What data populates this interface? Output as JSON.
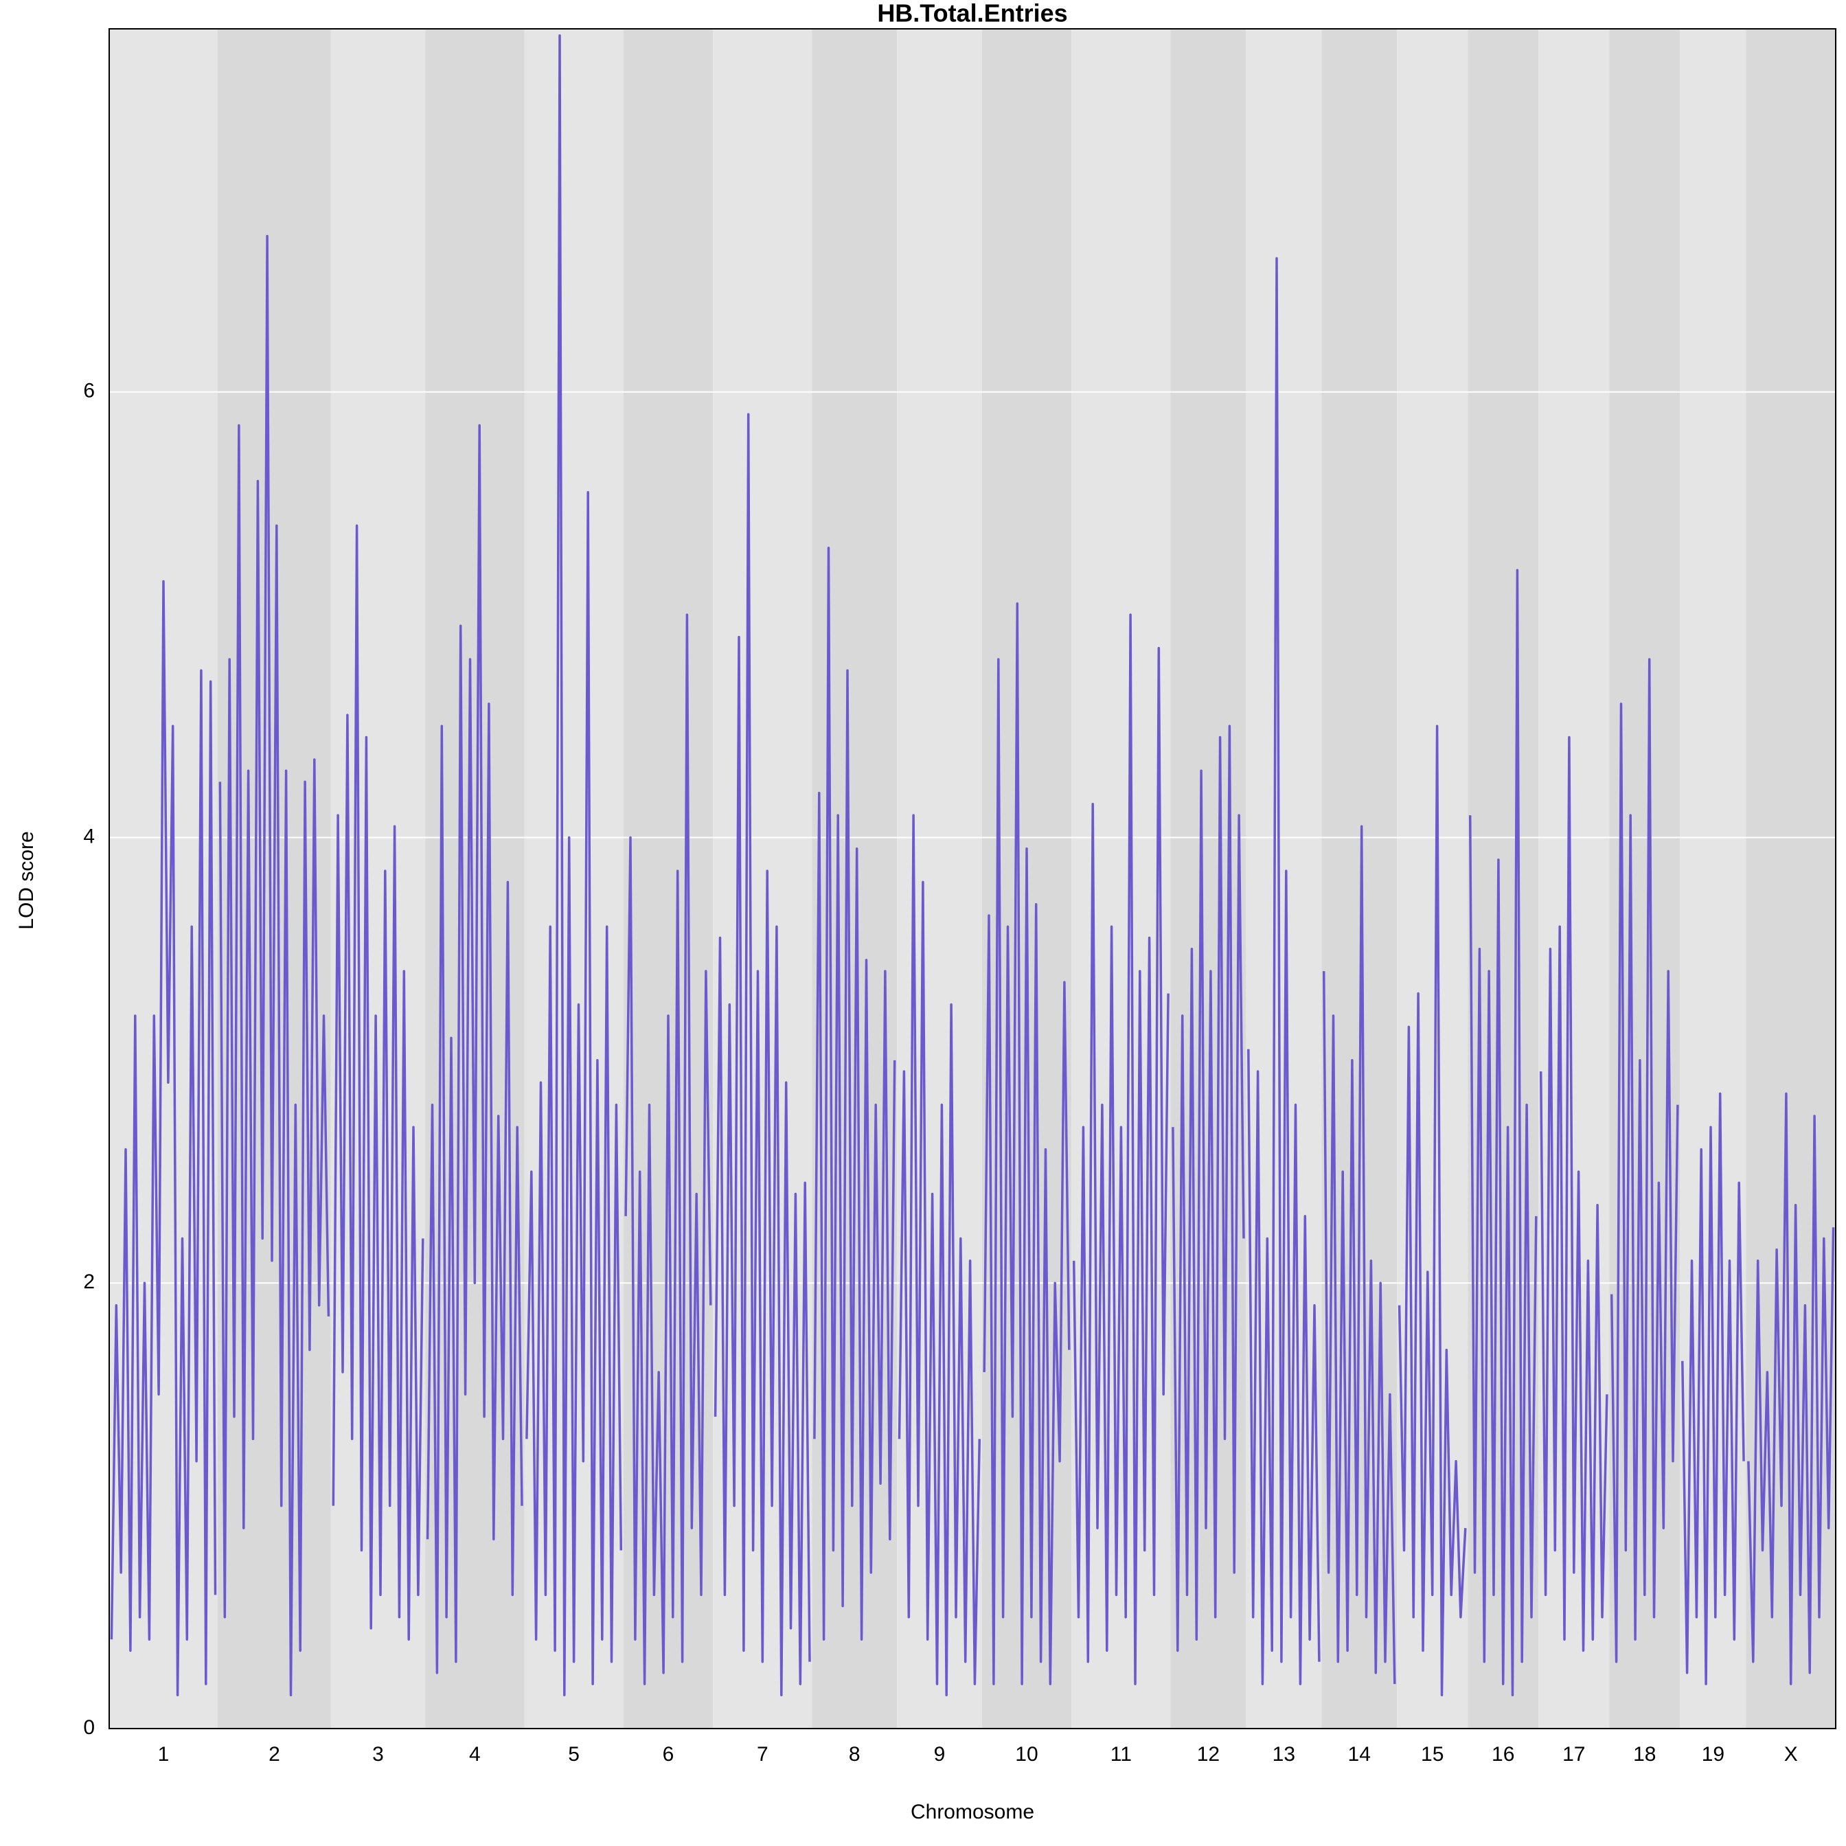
{
  "chart_data": {
    "type": "line",
    "title": "HB.Total.Entries",
    "x_label": "Chromosome",
    "y_label": "LOD score",
    "color": "#6a5acd",
    "ylim": [
      0,
      7.63
    ],
    "yticks": [
      0,
      2,
      4,
      6
    ],
    "grid": true,
    "chromosomes": [
      {
        "name": "1",
        "values": [
          0.4,
          1.9,
          0.7,
          2.6,
          0.35,
          3.2,
          0.5,
          2.0,
          0.4,
          3.2,
          1.5,
          5.15,
          2.9,
          4.5,
          0.15,
          2.2,
          0.4,
          3.6,
          1.2,
          4.75,
          0.2,
          4.7,
          0.6
        ]
      },
      {
        "name": "2",
        "values": [
          4.25,
          0.5,
          4.8,
          1.4,
          5.85,
          0.9,
          4.3,
          1.3,
          5.6,
          2.2,
          6.7,
          2.1,
          5.4,
          1.0,
          4.3,
          0.15,
          2.8,
          0.35,
          4.25,
          1.7,
          4.35,
          1.9,
          3.2,
          1.85
        ]
      },
      {
        "name": "3",
        "values": [
          1.0,
          4.1,
          1.6,
          4.55,
          1.3,
          5.4,
          0.8,
          4.45,
          0.45,
          3.2,
          0.6,
          3.85,
          1.0,
          4.05,
          0.5,
          3.4,
          0.4,
          2.7,
          0.6,
          2.2
        ]
      },
      {
        "name": "4",
        "values": [
          0.85,
          2.8,
          0.25,
          4.5,
          0.5,
          3.1,
          0.3,
          4.95,
          1.5,
          4.8,
          2.0,
          5.85,
          1.4,
          4.6,
          0.85,
          2.75,
          1.3,
          3.8,
          0.6,
          2.7,
          1.0
        ]
      },
      {
        "name": "5",
        "values": [
          1.3,
          2.5,
          0.4,
          2.9,
          0.6,
          3.6,
          0.35,
          7.6,
          0.15,
          4.0,
          0.3,
          3.25,
          1.2,
          5.55,
          0.2,
          3.0,
          0.4,
          3.6,
          0.3,
          2.8,
          0.8
        ]
      },
      {
        "name": "6",
        "values": [
          2.3,
          4.0,
          0.4,
          2.5,
          0.2,
          2.8,
          0.6,
          1.6,
          0.25,
          3.2,
          0.5,
          3.85,
          0.3,
          5.0,
          0.9,
          2.4,
          0.6,
          3.4,
          1.9
        ]
      },
      {
        "name": "7",
        "values": [
          1.4,
          3.55,
          0.6,
          3.25,
          1.0,
          4.9,
          0.35,
          5.9,
          0.8,
          3.4,
          0.3,
          3.85,
          1.0,
          3.6,
          0.15,
          2.9,
          0.45,
          2.4,
          0.2,
          2.45,
          0.3
        ]
      },
      {
        "name": "8",
        "values": [
          1.3,
          4.2,
          0.4,
          5.3,
          0.8,
          4.1,
          0.55,
          4.75,
          1.0,
          3.95,
          0.4,
          3.45,
          0.7,
          2.8,
          1.1,
          3.4,
          0.85,
          3.0
        ]
      },
      {
        "name": "9",
        "values": [
          1.3,
          2.95,
          0.5,
          4.1,
          1.0,
          3.8,
          0.4,
          2.4,
          0.2,
          2.8,
          0.15,
          3.25,
          0.5,
          2.2,
          0.3,
          2.1,
          0.2,
          1.3
        ]
      },
      {
        "name": "10",
        "values": [
          1.6,
          3.65,
          0.2,
          4.8,
          0.5,
          3.6,
          1.4,
          5.05,
          0.2,
          3.95,
          0.5,
          3.7,
          0.3,
          2.6,
          0.2,
          2.0,
          1.2,
          3.35,
          1.7
        ]
      },
      {
        "name": "11",
        "values": [
          2.1,
          0.5,
          2.7,
          0.3,
          4.15,
          0.9,
          2.8,
          0.35,
          3.6,
          0.6,
          2.7,
          0.5,
          5.0,
          0.2,
          3.4,
          0.8,
          3.55,
          0.6,
          4.85,
          1.5,
          3.3
        ]
      },
      {
        "name": "12",
        "values": [
          2.7,
          0.35,
          3.2,
          0.6,
          3.5,
          0.4,
          4.3,
          0.9,
          3.4,
          0.5,
          4.45,
          1.3,
          4.5,
          0.7,
          4.1,
          2.2
        ]
      },
      {
        "name": "13",
        "values": [
          3.05,
          0.5,
          2.95,
          0.2,
          2.2,
          0.35,
          6.6,
          0.3,
          3.85,
          0.5,
          2.8,
          0.2,
          2.3,
          0.4,
          1.9,
          0.3
        ]
      },
      {
        "name": "14",
        "values": [
          3.4,
          0.7,
          3.2,
          0.3,
          2.5,
          0.35,
          3.0,
          0.6,
          4.05,
          0.5,
          2.1,
          0.25,
          2.0,
          0.3,
          1.5,
          0.2
        ]
      },
      {
        "name": "15",
        "values": [
          1.9,
          0.8,
          3.15,
          0.5,
          3.3,
          0.35,
          2.05,
          0.6,
          4.5,
          0.15,
          1.7,
          0.6,
          1.2,
          0.5,
          0.9
        ]
      },
      {
        "name": "16",
        "values": [
          4.1,
          0.7,
          3.5,
          0.3,
          3.4,
          0.6,
          3.9,
          0.2,
          2.7,
          0.15,
          5.2,
          0.3,
          2.8,
          0.5,
          2.3
        ]
      },
      {
        "name": "17",
        "values": [
          2.95,
          0.6,
          3.5,
          0.8,
          3.6,
          0.4,
          4.45,
          0.7,
          2.5,
          0.35,
          2.1,
          0.4,
          2.35,
          0.5,
          1.5
        ]
      },
      {
        "name": "18",
        "values": [
          1.95,
          0.3,
          4.6,
          0.8,
          4.1,
          0.4,
          3.0,
          0.6,
          4.8,
          0.5,
          2.45,
          0.9,
          3.4,
          1.2,
          2.8
        ]
      },
      {
        "name": "19",
        "values": [
          1.65,
          0.25,
          2.1,
          0.5,
          2.6,
          0.2,
          2.7,
          0.5,
          2.85,
          0.6,
          2.1,
          0.4,
          2.45,
          1.2
        ]
      },
      {
        "name": "X",
        "values": [
          1.2,
          0.3,
          2.1,
          0.8,
          1.6,
          0.5,
          2.15,
          1.0,
          2.85,
          0.2,
          2.35,
          0.6,
          1.9,
          0.25,
          2.75,
          0.5,
          2.2,
          0.9,
          2.25
        ]
      }
    ]
  }
}
